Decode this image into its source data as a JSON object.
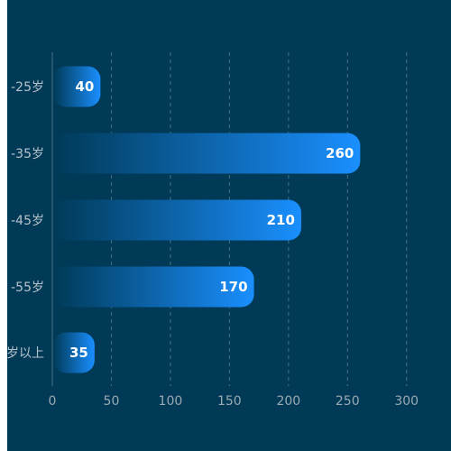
{
  "chart_data": {
    "type": "bar",
    "orientation": "horizontal",
    "categories": [
      "-25岁",
      "-35岁",
      "-45岁",
      "-55岁",
      "岁以上"
    ],
    "values": [
      40,
      260,
      210,
      170,
      35
    ],
    "xlim": [
      0,
      330
    ],
    "x_ticks": [
      "0",
      "50",
      "100",
      "150",
      "200",
      "250",
      "300"
    ],
    "grid": true,
    "colors": {
      "background": "#003a57",
      "bar_start": "#003a57",
      "bar_end": "#1a8fff",
      "grid": "#4a7184"
    }
  }
}
